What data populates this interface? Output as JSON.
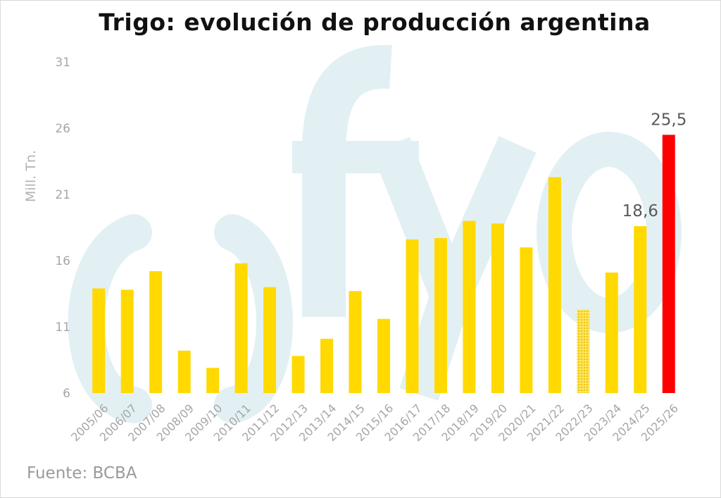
{
  "chart_data": {
    "type": "bar",
    "title": "Trigo: evolución de producción argentina",
    "ylabel": "Mill. Tn.",
    "xlabel": "",
    "ylim": [
      6,
      31
    ],
    "yticks": [
      "6",
      "11",
      "16",
      "21",
      "26",
      "31"
    ],
    "categories": [
      "2005/06",
      "2006/07",
      "2007/08",
      "2008/09",
      "2009/10",
      "2010/11",
      "2011/12",
      "2012/13",
      "2013/14",
      "2014/15",
      "2015/16",
      "2016/17",
      "2017/18",
      "2018/19",
      "2019/20",
      "2020/21",
      "2021/22",
      "2022/23",
      "2023/24",
      "2024/25",
      "2025/26"
    ],
    "values": [
      13.9,
      13.8,
      15.2,
      9.2,
      7.9,
      15.8,
      14.0,
      8.8,
      10.1,
      13.7,
      11.6,
      17.6,
      17.7,
      19.0,
      18.8,
      17.0,
      22.3,
      12.3,
      15.1,
      18.6,
      25.5
    ],
    "data_labels": [
      {
        "category": "2024/25",
        "text": "18,6"
      },
      {
        "category": "2025/26",
        "text": "25,5"
      }
    ],
    "colors": {
      "default": "#ffd900",
      "highlight": "#ff0000",
      "watermark": "#e2f0f4",
      "tick": "#a6a6a6",
      "label": "#5a5a5a"
    },
    "highlight_category": "2025/26",
    "dotted_category": "2022/23",
    "watermark_text": "fyo",
    "grid": false,
    "legend": "none"
  },
  "source": "Fuente: BCBA"
}
